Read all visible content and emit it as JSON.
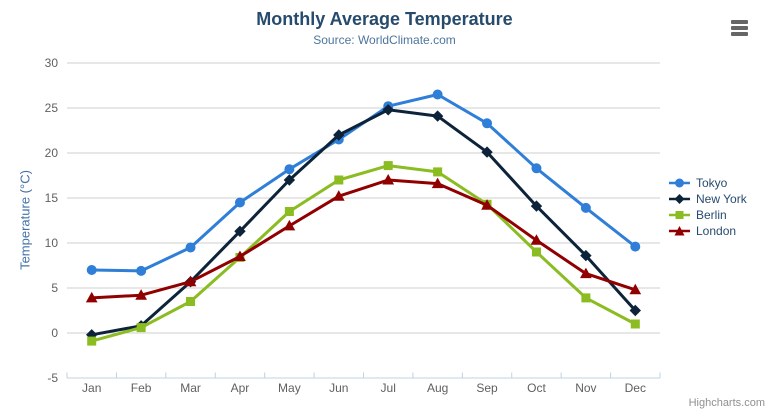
{
  "header": {
    "title": "Monthly Average Temperature",
    "subtitle": "Source: WorldClimate.com"
  },
  "chart_data": {
    "type": "line",
    "title": "Monthly Average Temperature",
    "subtitle": "Source: WorldClimate.com",
    "categories": [
      "Jan",
      "Feb",
      "Mar",
      "Apr",
      "May",
      "Jun",
      "Jul",
      "Aug",
      "Sep",
      "Oct",
      "Nov",
      "Dec"
    ],
    "series": [
      {
        "name": "Tokyo",
        "marker": "circle",
        "color": "#2f7ed8",
        "values": [
          7.0,
          6.9,
          9.5,
          14.5,
          18.2,
          21.5,
          25.2,
          26.5,
          23.3,
          18.3,
          13.9,
          9.6
        ]
      },
      {
        "name": "New York",
        "marker": "diamond",
        "color": "#0d233a",
        "values": [
          -0.2,
          0.8,
          5.7,
          11.3,
          17.0,
          22.0,
          24.8,
          24.1,
          20.1,
          14.1,
          8.6,
          2.5
        ]
      },
      {
        "name": "Berlin",
        "marker": "square",
        "color": "#8bbc21",
        "values": [
          -0.9,
          0.6,
          3.5,
          8.4,
          13.5,
          17.0,
          18.6,
          17.9,
          14.3,
          9.0,
          3.9,
          1.0
        ]
      },
      {
        "name": "London",
        "marker": "triangle",
        "color": "#910000",
        "values": [
          3.9,
          4.2,
          5.7,
          8.5,
          11.9,
          15.2,
          17.0,
          16.6,
          14.2,
          10.3,
          6.6,
          4.8
        ]
      }
    ],
    "xlabel": "",
    "ylabel": "Temperature (°C)",
    "ylim": [
      -5,
      30
    ],
    "ytick_step": 5,
    "grid": true,
    "legend_position": "right"
  },
  "colors": {
    "grid_line": "#cfcfcf",
    "axis_line": "#c0d0e0",
    "tick_label": "#606060",
    "title": "#274b6d",
    "subtitle": "#4d759e",
    "y_axis_title": "#4572a7",
    "legend_text": "#274b6d",
    "credits": "#909090"
  },
  "menu": {
    "icon": "hamburger-menu-icon"
  },
  "credits": {
    "label": "Highcharts.com"
  }
}
